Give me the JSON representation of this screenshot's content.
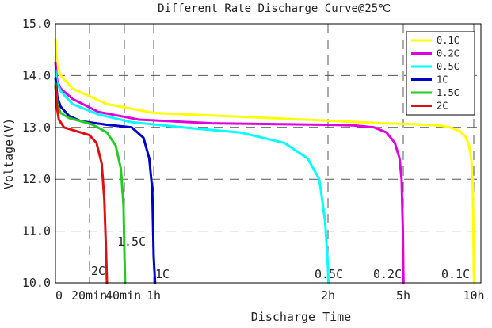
{
  "chart_data": {
    "type": "line",
    "title": "Different Rate Discharge Curve@25℃",
    "xlabel": "Discharge Time",
    "ylabel": "Voltage(V)",
    "ylim": [
      10.0,
      15.0
    ],
    "xlim_minutes": [
      0,
      630
    ],
    "grid": "dashed, at y tick labels and x tick labels",
    "legend_position": "top-right",
    "y_ticks": [
      {
        "value": 10.0,
        "label": "10.0"
      },
      {
        "value": 11.0,
        "label": "11.0"
      },
      {
        "value": 12.0,
        "label": "12.0"
      },
      {
        "value": 13.0,
        "label": "13.0"
      },
      {
        "value": 14.0,
        "label": "14.0"
      },
      {
        "value": 15.0,
        "label": "15.0"
      }
    ],
    "x_ticks": [
      {
        "minutes": 0,
        "label": "0"
      },
      {
        "minutes": 20,
        "label": "20min"
      },
      {
        "minutes": 40,
        "label": "40min"
      },
      {
        "minutes": 60,
        "label": "1h"
      },
      {
        "minutes": 120,
        "label": "2h"
      },
      {
        "minutes": 300,
        "label": "5h"
      },
      {
        "minutes": 600,
        "label": "10h"
      }
    ],
    "series": [
      {
        "name": "0.1C",
        "color": "#ffff00",
        "end_label": "0.1C",
        "x_minutes": [
          0,
          0.5,
          1,
          3,
          10,
          30,
          60,
          100,
          150,
          250,
          350,
          450,
          500,
          540,
          565,
          580,
          590,
          595,
          598,
          600,
          601
        ],
        "y": [
          14.7,
          14.45,
          14.2,
          14.0,
          13.75,
          13.45,
          13.28,
          13.18,
          13.12,
          13.08,
          13.06,
          13.04,
          13.0,
          12.93,
          12.82,
          12.65,
          12.35,
          12.0,
          11.2,
          10.2,
          10.0
        ]
      },
      {
        "name": "0.2C",
        "color": "#e000e0",
        "end_label": "0.2C",
        "x_minutes": [
          0,
          0.5,
          1,
          3,
          10,
          25,
          50,
          80,
          120,
          180,
          230,
          260,
          280,
          291,
          296,
          299,
          300,
          301
        ],
        "y": [
          14.25,
          14.05,
          13.9,
          13.75,
          13.55,
          13.3,
          13.15,
          13.08,
          13.05,
          13.04,
          13.0,
          12.9,
          12.7,
          12.4,
          12.0,
          11.0,
          10.3,
          10.0
        ]
      },
      {
        "name": "0.5C",
        "color": "#00ffff",
        "end_label": "0.5C",
        "x_minutes": [
          0,
          0.5,
          1,
          3,
          10,
          25,
          45,
          70,
          90,
          105,
          113,
          117,
          119,
          120,
          121
        ],
        "y": [
          14.1,
          13.95,
          13.85,
          13.7,
          13.45,
          13.25,
          13.1,
          13.0,
          12.9,
          12.7,
          12.4,
          12.0,
          11.2,
          10.3,
          10.0
        ]
      },
      {
        "name": "1C",
        "color": "#0000c8",
        "end_label": "1C",
        "x_minutes": [
          0,
          0.5,
          1,
          3,
          8,
          15,
          30,
          45,
          53,
          57,
          59,
          60,
          60.5
        ],
        "y": [
          13.95,
          13.8,
          13.6,
          13.4,
          13.22,
          13.12,
          13.05,
          13.0,
          12.8,
          12.4,
          11.8,
          10.5,
          10.0
        ]
      },
      {
        "name": "1.5C",
        "color": "#22cc22",
        "end_label": "1.5C",
        "x_minutes": [
          0,
          0.5,
          1,
          3,
          8,
          15,
          22,
          30,
          35,
          38,
          39.5,
          40,
          40.5
        ],
        "y": [
          13.85,
          13.65,
          13.45,
          13.28,
          13.18,
          13.12,
          13.05,
          12.9,
          12.65,
          12.2,
          11.5,
          10.6,
          10.0
        ]
      },
      {
        "name": "2C",
        "color": "#dd1111",
        "end_label": "2C",
        "x_minutes": [
          0,
          0.5,
          1,
          2,
          5,
          10,
          15,
          20,
          24,
          27,
          28.5,
          29.5,
          30
        ],
        "y": [
          13.8,
          13.55,
          13.35,
          13.15,
          13.0,
          12.95,
          12.9,
          12.85,
          12.7,
          12.3,
          11.6,
          10.6,
          10.0
        ]
      }
    ]
  }
}
